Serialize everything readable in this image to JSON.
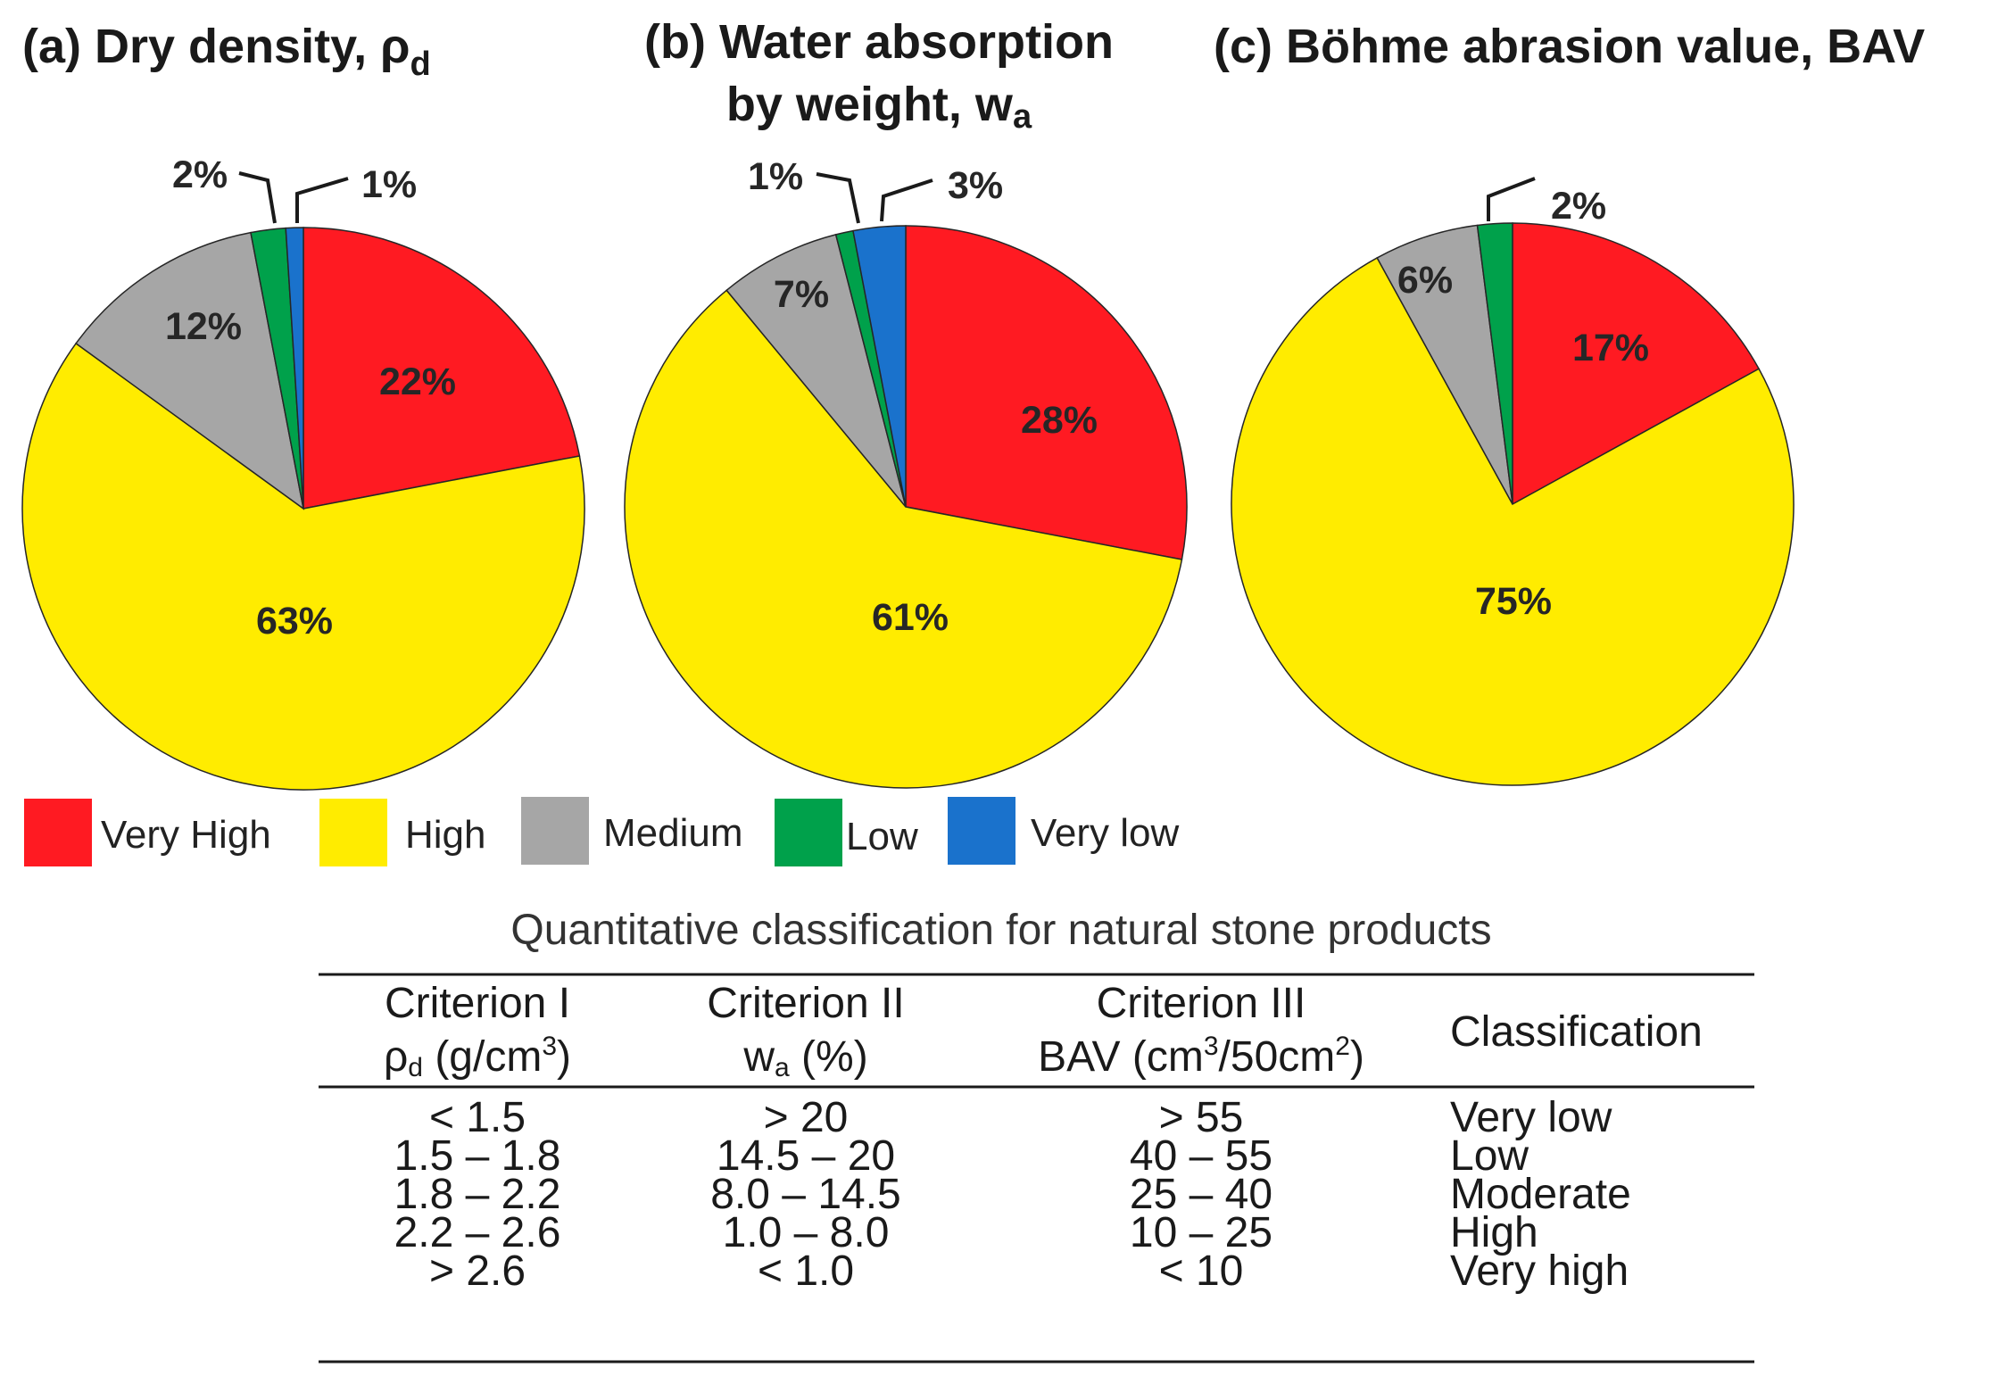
{
  "colors": {
    "very_high": "#ff1a22",
    "high": "#ffec00",
    "medium": "#a6a6a6",
    "low": "#00a14b",
    "very_low": "#1a72cc"
  },
  "legend": [
    {
      "key": "very_high",
      "label": "Very High"
    },
    {
      "key": "high",
      "label": "High"
    },
    {
      "key": "medium",
      "label": "Medium"
    },
    {
      "key": "low",
      "label": "Low"
    },
    {
      "key": "very_low",
      "label": "Very low"
    }
  ],
  "chart_data": [
    {
      "type": "pie",
      "id": "a",
      "title": "(a) Dry density, ρ",
      "title_sub": "d",
      "slices": [
        {
          "key": "very_high",
          "value": 22,
          "label": "22%"
        },
        {
          "key": "high",
          "value": 63,
          "label": "63%"
        },
        {
          "key": "medium",
          "value": 12,
          "label": "12%"
        },
        {
          "key": "low",
          "value": 2,
          "label": "2%"
        },
        {
          "key": "very_low",
          "value": 1,
          "label": "1%"
        }
      ]
    },
    {
      "type": "pie",
      "id": "b",
      "title": "(b) Water absorption",
      "title_line2": "by weight, w",
      "title_sub": "a",
      "slices": [
        {
          "key": "very_high",
          "value": 28,
          "label": "28%"
        },
        {
          "key": "high",
          "value": 61,
          "label": "61%"
        },
        {
          "key": "medium",
          "value": 7,
          "label": "7%"
        },
        {
          "key": "low",
          "value": 1,
          "label": "1%"
        },
        {
          "key": "very_low",
          "value": 3,
          "label": "3%"
        }
      ]
    },
    {
      "type": "pie",
      "id": "c",
      "title": "(c) Böhme abrasion value, BAV",
      "slices": [
        {
          "key": "very_high",
          "value": 17,
          "label": "17%"
        },
        {
          "key": "high",
          "value": 75,
          "label": "75%"
        },
        {
          "key": "medium",
          "value": 6,
          "label": "6%"
        },
        {
          "key": "low",
          "value": 2,
          "label": "2%"
        }
      ]
    },
    {
      "type": "table",
      "caption": "Quantitative classification for natural stone products",
      "headers": {
        "c1_line1": "Criterion I",
        "c1_line2": "ρ",
        "c1_sub": "d",
        "c1_unit": " (g/cm",
        "c1_sup": "3",
        "c1_close": ")",
        "c2_line1": "Criterion II",
        "c2_line2": "w",
        "c2_sub": "a",
        "c2_unit": " (%)",
        "c3_line1": "Criterion III",
        "c3_line2": "BAV (cm",
        "c3_sup1": "3",
        "c3_mid": "/50cm",
        "c3_sup2": "2",
        "c3_close": ")",
        "c4": "Classification"
      },
      "rows": [
        {
          "c1": "< 1.5",
          "c2": "> 20",
          "c3": "> 55",
          "cls": "Very low"
        },
        {
          "c1": "1.5 – 1.8",
          "c2": "14.5 – 20",
          "c3": "40 – 55",
          "cls": "Low"
        },
        {
          "c1": "1.8 – 2.2",
          "c2": "8.0 – 14.5",
          "c3": "25 – 40",
          "cls": "Moderate"
        },
        {
          "c1": "2.2 – 2.6",
          "c2": "1.0 – 8.0",
          "c3": "10 – 25",
          "cls": "High"
        },
        {
          "c1": "> 2.6",
          "c2": "< 1.0",
          "c3": "< 10",
          "cls": "Very high"
        }
      ]
    }
  ]
}
